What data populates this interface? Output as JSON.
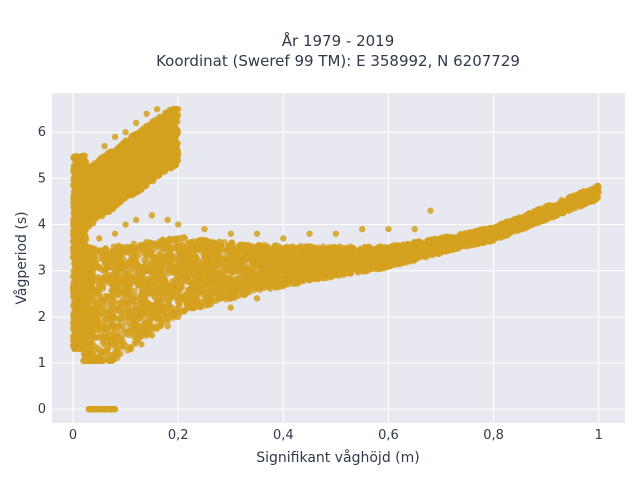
{
  "chart_data": {
    "type": "scatter",
    "title_line1": "År 1979 - 2019",
    "title_line2": "Koordinat (Sweref 99 TM): E 358992, N 6207729",
    "xlabel": "Signifikant våghöjd (m)",
    "ylabel": "Vågperiod (s)",
    "xlim": [
      -0.04,
      1.05
    ],
    "ylim": [
      -0.3,
      6.85
    ],
    "xticks": [
      0,
      0.2,
      0.4,
      0.6,
      0.8,
      1.0
    ],
    "xtick_labels": [
      "0",
      "0,2",
      "0,4",
      "0,6",
      "0,8",
      "1"
    ],
    "yticks": [
      0,
      1,
      2,
      3,
      4,
      5,
      6
    ],
    "ytick_labels": [
      "0",
      "1",
      "2",
      "3",
      "4",
      "5",
      "6"
    ],
    "grid": true,
    "background": "#e8e8f0",
    "marker_color": "#d4a11f",
    "clusters": [
      {
        "name": "low-height-vertical",
        "x_range": [
          0.0,
          0.025
        ],
        "y_range": [
          1.3,
          5.5
        ]
      },
      {
        "name": "high-period-band",
        "x_range": [
          0.02,
          0.2
        ],
        "y_range": [
          4.3,
          6.5
        ]
      },
      {
        "name": "main-trend",
        "trend_points": [
          [
            0.02,
            2.0
          ],
          [
            0.2,
            2.9
          ],
          [
            0.4,
            3.1
          ],
          [
            0.6,
            3.3
          ],
          [
            0.8,
            3.8
          ],
          [
            1.0,
            4.7
          ]
        ]
      },
      {
        "name": "zero-period",
        "x_range": [
          0.03,
          0.08
        ],
        "y": 0
      }
    ],
    "points": [
      [
        0.005,
        2.0
      ],
      [
        0.005,
        3.0
      ],
      [
        0.005,
        4.0
      ],
      [
        0.005,
        5.0
      ],
      [
        0.01,
        5.4
      ],
      [
        0.01,
        1.6
      ],
      [
        0.015,
        2.5
      ],
      [
        0.015,
        3.5
      ],
      [
        0.015,
        4.5
      ],
      [
        0.02,
        1.8
      ],
      [
        0.02,
        2.8
      ],
      [
        0.02,
        3.8
      ],
      [
        0.02,
        4.8
      ],
      [
        0.025,
        5.2
      ],
      [
        0.03,
        4.6
      ],
      [
        0.04,
        4.9
      ],
      [
        0.05,
        5.3
      ],
      [
        0.06,
        5.7
      ],
      [
        0.07,
        5.5
      ],
      [
        0.08,
        5.9
      ],
      [
        0.09,
        5.6
      ],
      [
        0.1,
        6.0
      ],
      [
        0.11,
        5.8
      ],
      [
        0.12,
        6.2
      ],
      [
        0.13,
        6.0
      ],
      [
        0.14,
        6.4
      ],
      [
        0.15,
        6.1
      ],
      [
        0.16,
        6.5
      ],
      [
        0.17,
        6.2
      ],
      [
        0.18,
        6.3
      ],
      [
        0.19,
        5.9
      ],
      [
        0.1,
        5.2
      ],
      [
        0.12,
        5.4
      ],
      [
        0.14,
        5.6
      ],
      [
        0.06,
        4.8
      ],
      [
        0.08,
        5.0
      ],
      [
        0.04,
        5.1
      ],
      [
        0.16,
        5.7
      ],
      [
        0.03,
        1.2
      ],
      [
        0.05,
        1.1
      ],
      [
        0.07,
        1.1
      ],
      [
        0.09,
        1.2
      ],
      [
        0.11,
        1.3
      ],
      [
        0.13,
        1.4
      ],
      [
        0.15,
        1.6
      ],
      [
        0.18,
        1.8
      ],
      [
        0.2,
        2.0
      ],
      [
        0.22,
        2.2
      ],
      [
        0.25,
        2.3
      ],
      [
        0.28,
        2.4
      ],
      [
        0.3,
        2.5
      ],
      [
        0.33,
        2.6
      ],
      [
        0.36,
        2.7
      ],
      [
        0.4,
        2.8
      ],
      [
        0.45,
        2.9
      ],
      [
        0.5,
        3.0
      ],
      [
        0.55,
        3.1
      ],
      [
        0.03,
        3.5
      ],
      [
        0.05,
        3.7
      ],
      [
        0.08,
        3.8
      ],
      [
        0.1,
        4.0
      ],
      [
        0.12,
        4.1
      ],
      [
        0.15,
        4.2
      ],
      [
        0.18,
        4.1
      ],
      [
        0.2,
        4.0
      ],
      [
        0.25,
        3.9
      ],
      [
        0.3,
        3.8
      ],
      [
        0.35,
        3.8
      ],
      [
        0.4,
        3.7
      ],
      [
        0.45,
        3.8
      ],
      [
        0.5,
        3.8
      ],
      [
        0.55,
        3.9
      ],
      [
        0.6,
        3.9
      ],
      [
        0.65,
        3.9
      ],
      [
        0.68,
        4.3
      ],
      [
        0.7,
        3.6
      ],
      [
        0.72,
        3.7
      ],
      [
        0.75,
        3.7
      ],
      [
        0.78,
        3.8
      ],
      [
        0.8,
        3.9
      ],
      [
        0.82,
        4.0
      ],
      [
        0.85,
        4.1
      ],
      [
        0.88,
        4.2
      ],
      [
        0.9,
        4.3
      ],
      [
        0.92,
        4.4
      ],
      [
        0.94,
        4.5
      ],
      [
        0.96,
        4.6
      ],
      [
        0.98,
        4.6
      ],
      [
        1.0,
        4.7
      ],
      [
        0.6,
        3.4
      ],
      [
        0.65,
        3.5
      ],
      [
        0.7,
        3.5
      ],
      [
        0.75,
        3.6
      ],
      [
        0.05,
        2.5
      ],
      [
        0.08,
        2.6
      ],
      [
        0.1,
        2.7
      ],
      [
        0.12,
        2.8
      ],
      [
        0.15,
        2.9
      ],
      [
        0.18,
        3.0
      ],
      [
        0.2,
        3.0
      ],
      [
        0.25,
        3.1
      ],
      [
        0.3,
        3.1
      ],
      [
        0.35,
        3.2
      ],
      [
        0.4,
        3.2
      ],
      [
        0.45,
        3.3
      ],
      [
        0.5,
        3.3
      ],
      [
        0.55,
        3.4
      ],
      [
        0.6,
        3.5
      ],
      [
        0.62,
        3.3
      ],
      [
        0.3,
        2.2
      ],
      [
        0.35,
        2.4
      ],
      [
        0.03,
        0.0
      ],
      [
        0.04,
        0.0
      ],
      [
        0.05,
        0.0
      ],
      [
        0.06,
        0.0
      ],
      [
        0.07,
        0.0
      ],
      [
        0.08,
        0.0
      ]
    ]
  }
}
